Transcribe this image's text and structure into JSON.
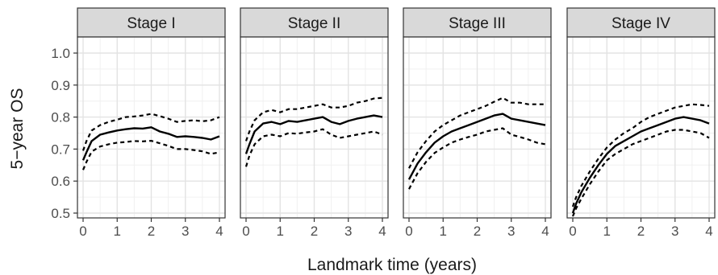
{
  "chart_data": {
    "type": "line",
    "layout": "facet",
    "xlabel": "Landmark time (years)",
    "ylabel": "5−year OS",
    "xlim": [
      0,
      4
    ],
    "ylim": [
      0.5,
      1.0
    ],
    "x_ticks": [
      "0",
      "1",
      "2",
      "3",
      "4"
    ],
    "y_ticks": [
      "0.5",
      "0.6",
      "0.7",
      "0.8",
      "0.9",
      "1.0"
    ],
    "x_tick_values": [
      0,
      1,
      2,
      3,
      4
    ],
    "y_tick_values": [
      0.5,
      0.6,
      0.7,
      0.8,
      0.9,
      1.0
    ],
    "grid": true,
    "line_color": "#000000",
    "strip_color": "#d9d9d9",
    "panels": [
      {
        "title": "Stage I",
        "x": [
          0,
          0.1,
          0.25,
          0.5,
          0.75,
          1,
          1.25,
          1.5,
          1.75,
          2,
          2.25,
          2.5,
          2.75,
          3,
          3.25,
          3.5,
          3.75,
          4
        ],
        "estimate": [
          0.665,
          0.69,
          0.725,
          0.745,
          0.752,
          0.758,
          0.762,
          0.765,
          0.764,
          0.768,
          0.755,
          0.748,
          0.738,
          0.74,
          0.738,
          0.735,
          0.73,
          0.74
        ],
        "lower": [
          0.635,
          0.66,
          0.692,
          0.708,
          0.715,
          0.72,
          0.722,
          0.725,
          0.724,
          0.726,
          0.718,
          0.71,
          0.7,
          0.7,
          0.697,
          0.693,
          0.685,
          0.69
        ],
        "upper": [
          0.695,
          0.725,
          0.758,
          0.775,
          0.785,
          0.792,
          0.8,
          0.802,
          0.805,
          0.81,
          0.803,
          0.795,
          0.785,
          0.788,
          0.79,
          0.787,
          0.79,
          0.8
        ]
      },
      {
        "title": "Stage II",
        "x": [
          0,
          0.1,
          0.25,
          0.5,
          0.75,
          1,
          1.25,
          1.5,
          1.75,
          2,
          2.25,
          2.5,
          2.75,
          3,
          3.25,
          3.5,
          3.75,
          4
        ],
        "estimate": [
          0.685,
          0.715,
          0.755,
          0.78,
          0.785,
          0.778,
          0.788,
          0.785,
          0.79,
          0.795,
          0.8,
          0.785,
          0.778,
          0.788,
          0.795,
          0.8,
          0.805,
          0.8
        ],
        "lower": [
          0.645,
          0.68,
          0.715,
          0.74,
          0.745,
          0.74,
          0.75,
          0.748,
          0.752,
          0.755,
          0.762,
          0.745,
          0.735,
          0.74,
          0.745,
          0.75,
          0.755,
          0.745
        ],
        "upper": [
          0.725,
          0.755,
          0.79,
          0.815,
          0.822,
          0.815,
          0.825,
          0.825,
          0.83,
          0.835,
          0.84,
          0.83,
          0.83,
          0.835,
          0.845,
          0.85,
          0.858,
          0.86
        ]
      },
      {
        "title": "Stage III",
        "x": [
          0,
          0.1,
          0.25,
          0.5,
          0.75,
          1,
          1.25,
          1.5,
          1.75,
          2,
          2.25,
          2.5,
          2.75,
          3,
          3.25,
          3.5,
          3.75,
          4
        ],
        "estimate": [
          0.605,
          0.625,
          0.655,
          0.69,
          0.72,
          0.74,
          0.755,
          0.765,
          0.775,
          0.785,
          0.795,
          0.805,
          0.81,
          0.795,
          0.79,
          0.785,
          0.78,
          0.775
        ],
        "lower": [
          0.575,
          0.595,
          0.625,
          0.66,
          0.688,
          0.705,
          0.72,
          0.73,
          0.738,
          0.745,
          0.755,
          0.76,
          0.765,
          0.745,
          0.738,
          0.73,
          0.72,
          0.715
        ],
        "upper": [
          0.64,
          0.66,
          0.69,
          0.725,
          0.755,
          0.775,
          0.79,
          0.805,
          0.815,
          0.825,
          0.835,
          0.848,
          0.86,
          0.845,
          0.845,
          0.84,
          0.84,
          0.84
        ]
      },
      {
        "title": "Stage IV",
        "x": [
          0,
          0.1,
          0.25,
          0.5,
          0.75,
          1,
          1.25,
          1.5,
          1.75,
          2,
          2.25,
          2.5,
          2.75,
          3,
          3.25,
          3.5,
          3.75,
          4
        ],
        "estimate": [
          0.5,
          0.53,
          0.565,
          0.61,
          0.65,
          0.685,
          0.71,
          0.725,
          0.74,
          0.755,
          0.765,
          0.775,
          0.785,
          0.795,
          0.8,
          0.795,
          0.79,
          0.78
        ],
        "lower": [
          0.49,
          0.515,
          0.545,
          0.59,
          0.63,
          0.665,
          0.685,
          0.7,
          0.715,
          0.725,
          0.735,
          0.745,
          0.755,
          0.76,
          0.76,
          0.755,
          0.75,
          0.735
        ],
        "upper": [
          0.52,
          0.55,
          0.585,
          0.63,
          0.67,
          0.705,
          0.73,
          0.75,
          0.765,
          0.785,
          0.8,
          0.81,
          0.82,
          0.83,
          0.835,
          0.84,
          0.838,
          0.835
        ]
      }
    ]
  }
}
